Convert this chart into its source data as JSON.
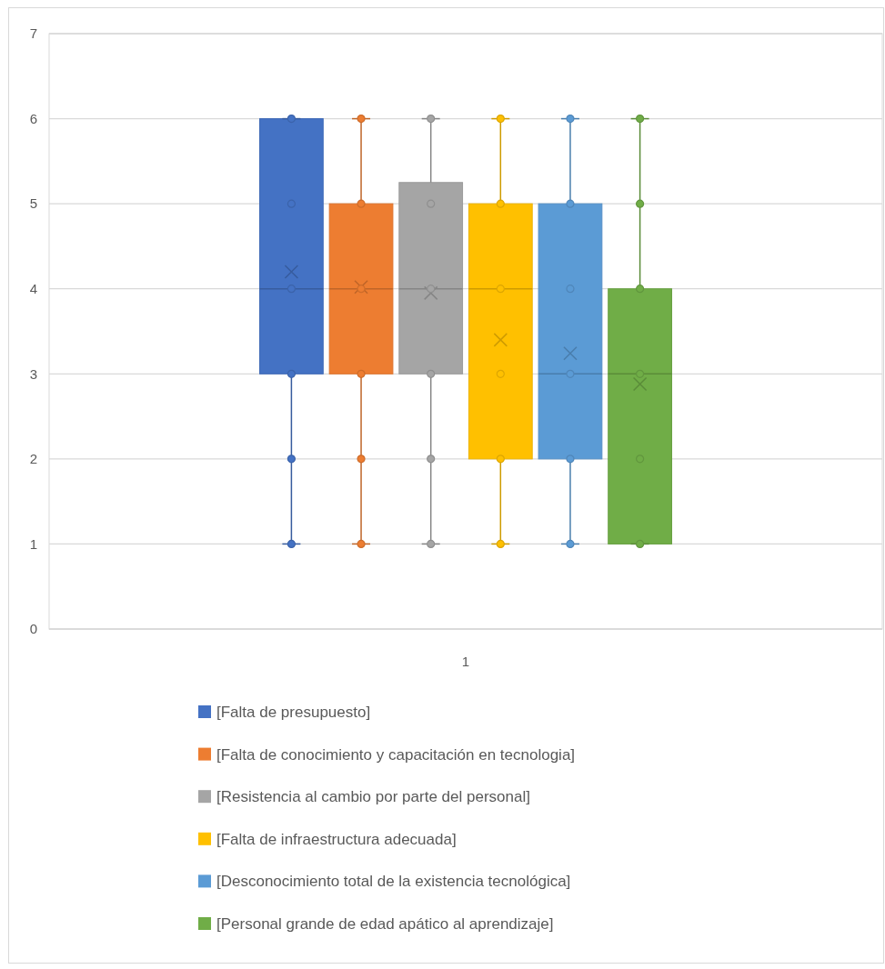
{
  "chart_data": {
    "type": "box",
    "categories": [
      "1"
    ],
    "ylim": [
      0,
      7
    ],
    "yticks": [
      0,
      1,
      2,
      3,
      4,
      5,
      6,
      7
    ],
    "grid": "y",
    "legend": "bottom",
    "marker": "circle",
    "series": [
      {
        "name": "[Falta de presupuesto]",
        "color": "#4472c4",
        "boxes": [
          {
            "low": 1,
            "q1": 3,
            "median": 4,
            "q3": 6,
            "high": 6,
            "mean": 4.2
          }
        ]
      },
      {
        "name": "[Falta de conocimiento y capacitación en tecnologia]",
        "color": "#ed7d31",
        "boxes": [
          {
            "low": 1,
            "q1": 3,
            "median": 4,
            "q3": 5,
            "high": 6,
            "mean": 4.02
          }
        ]
      },
      {
        "name": "[Resistencia al cambio por parte del personal]",
        "color": "#a5a5a5",
        "boxes": [
          {
            "low": 1,
            "q1": 3,
            "median": 4,
            "q3": 5.25,
            "high": 6,
            "mean": 3.95
          }
        ]
      },
      {
        "name": "[Falta de infraestructura adecuada]",
        "color": "#ffc000",
        "boxes": [
          {
            "low": 1,
            "q1": 2,
            "median": 4,
            "q3": 5,
            "high": 6,
            "mean": 3.4
          }
        ]
      },
      {
        "name": "[Desconocimiento total de la existencia tecnológica]",
        "color": "#5b9bd5",
        "boxes": [
          {
            "low": 1,
            "q1": 2,
            "median": 3,
            "q3": 5,
            "high": 6,
            "mean": 3.24
          }
        ]
      },
      {
        "name": "[Personal grande de edad apático al aprendizaje]",
        "color": "#70ad47",
        "boxes": [
          {
            "low": 1,
            "q1": 1,
            "median": 3,
            "q3": 4,
            "high": 6,
            "mean": 2.88
          }
        ]
      },
      {
        "type": "scatter",
        "color": "#4472c4",
        "x": [
          "1",
          "1",
          "1",
          "1",
          "1",
          "1"
        ],
        "values": [
          1,
          2,
          3,
          4,
          5,
          6
        ]
      },
      {
        "type": "scatter",
        "color": "#ed7d31",
        "x": [
          "1",
          "1",
          "1",
          "1",
          "1",
          "1"
        ],
        "values": [
          1,
          2,
          3,
          4,
          5,
          6
        ]
      },
      {
        "type": "scatter",
        "color": "#a5a5a5",
        "x": [
          "1",
          "1",
          "1",
          "1",
          "1",
          "1"
        ],
        "values": [
          1,
          2,
          3,
          4,
          5,
          6
        ]
      },
      {
        "type": "scatter",
        "color": "#ffc000",
        "x": [
          "1",
          "1",
          "1",
          "1",
          "1",
          "1"
        ],
        "values": [
          1,
          2,
          3,
          4,
          5,
          6
        ]
      },
      {
        "type": "scatter",
        "color": "#5b9bd5",
        "x": [
          "1",
          "1",
          "1",
          "1",
          "1",
          "1"
        ],
        "values": [
          1,
          2,
          3,
          4,
          5,
          6
        ]
      },
      {
        "type": "scatter",
        "color": "#70ad47",
        "x": [
          "1",
          "1",
          "1",
          "1",
          "1",
          "1"
        ],
        "values": [
          1,
          2,
          3,
          4,
          5,
          6
        ]
      }
    ]
  }
}
